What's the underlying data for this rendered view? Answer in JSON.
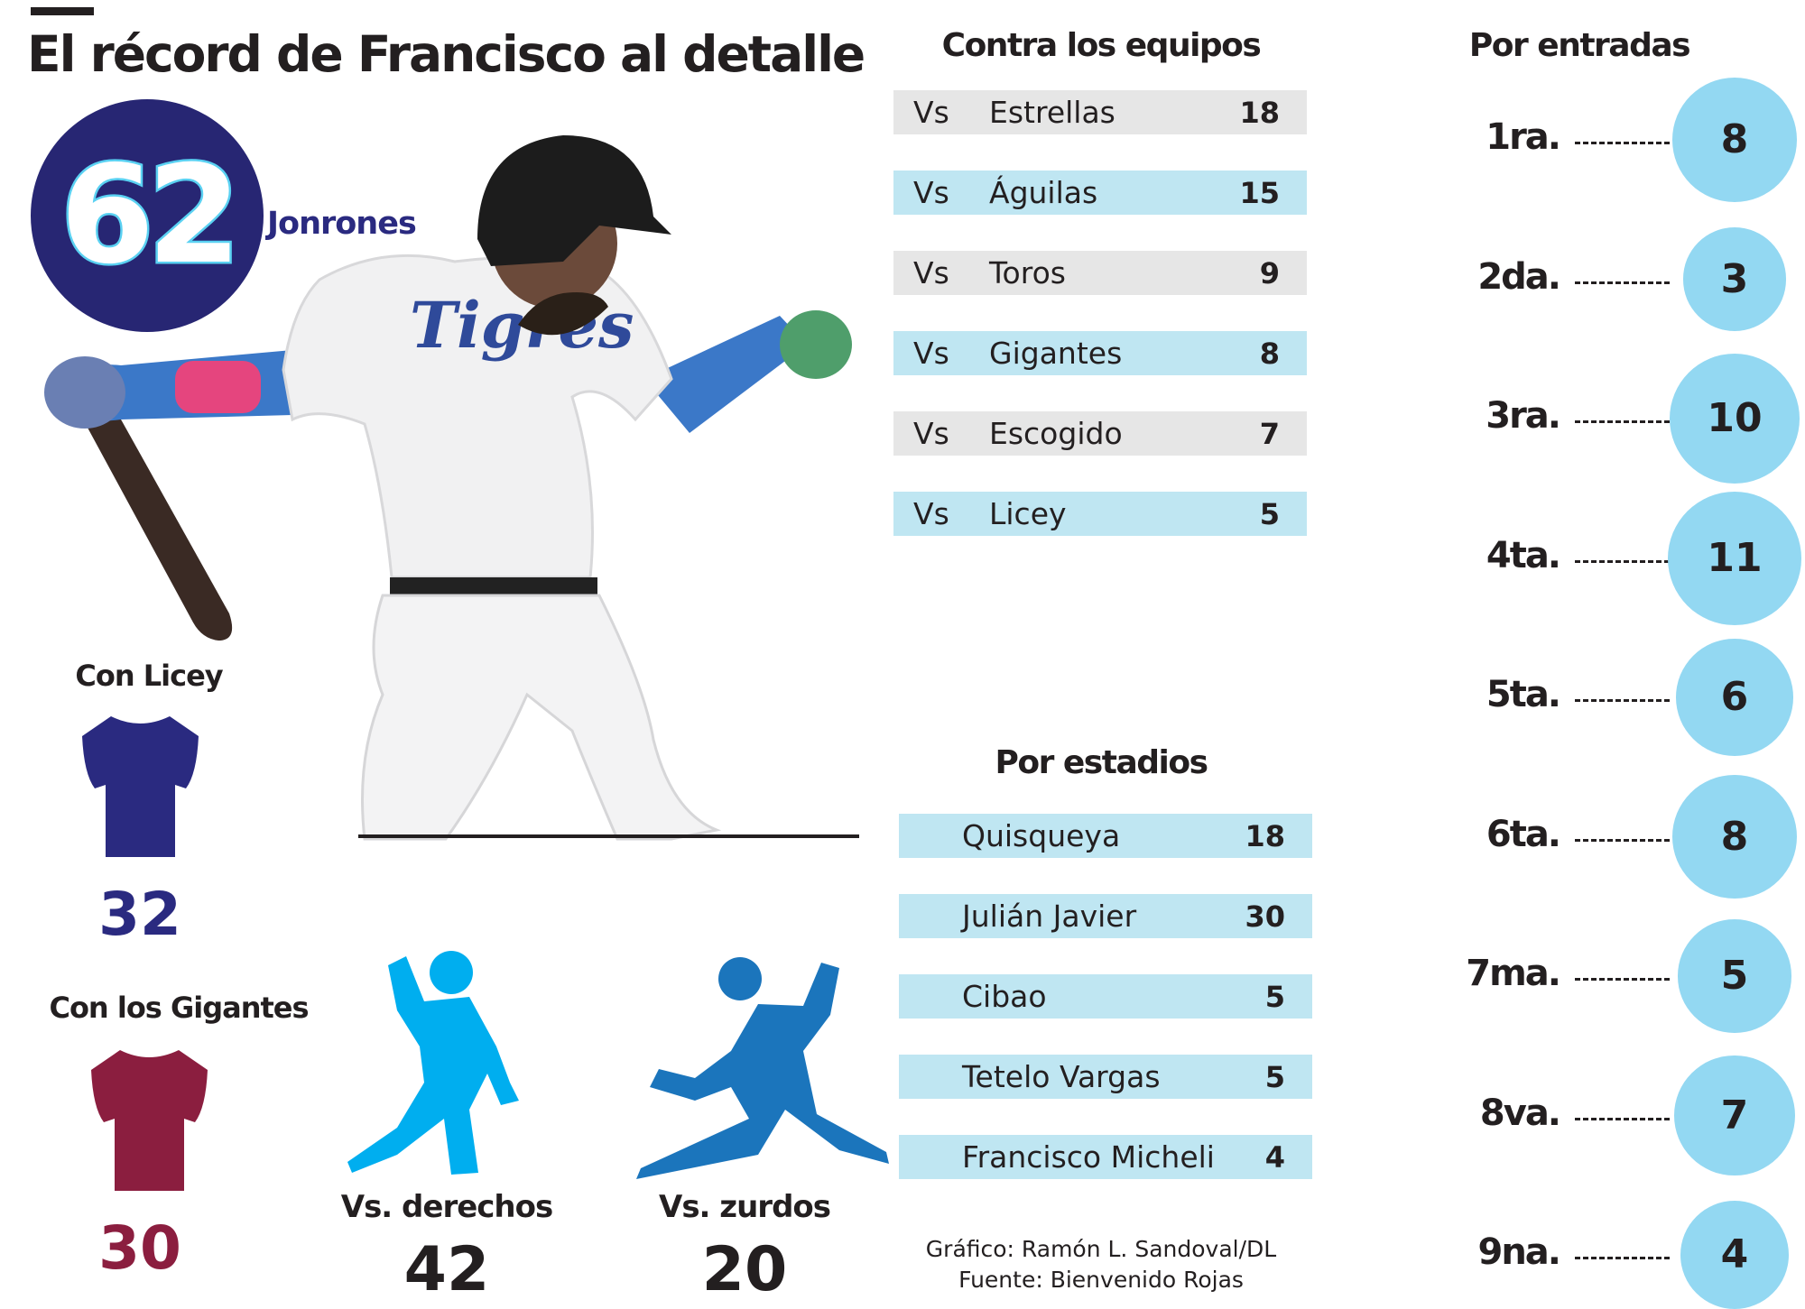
{
  "title": "El récord de Francisco al detalle",
  "home_runs": {
    "total": "62",
    "label": "Jonrones"
  },
  "teams": [
    {
      "label": "Con Licey",
      "value": "32",
      "color": "#2a2a80"
    },
    {
      "label": "Con los Gigantes",
      "value": "30",
      "color": "#8b1e3f"
    }
  ],
  "pitchers": [
    {
      "label": "Vs. derechos",
      "value": "42",
      "color": "#00aeef"
    },
    {
      "label": "Vs. zurdos",
      "value": "20",
      "color": "#1b75bc"
    }
  ],
  "colors": {
    "navy": "#272673",
    "light_blue": "#93d8f2",
    "row_gray": "#e6e6e6",
    "row_blue": "#bfe6f2"
  },
  "chart_data": [
    {
      "type": "table",
      "title": "Contra los equipos",
      "prefix": "Vs",
      "rows": [
        {
          "name": "Estrellas",
          "value": 18
        },
        {
          "name": "Águilas",
          "value": 15
        },
        {
          "name": "Toros",
          "value": 9
        },
        {
          "name": "Gigantes",
          "value": 8
        },
        {
          "name": "Escogido",
          "value": 7
        },
        {
          "name": "Licey",
          "value": 5
        }
      ]
    },
    {
      "type": "table",
      "title": "Por estadios",
      "rows": [
        {
          "name": "Quisqueya",
          "value": 18
        },
        {
          "name": "Julián Javier",
          "value": 30
        },
        {
          "name": "Cibao",
          "value": 5
        },
        {
          "name": "Tetelo Vargas",
          "value": 5
        },
        {
          "name": "Francisco Micheli",
          "value": 4
        }
      ]
    },
    {
      "type": "scatter",
      "title": "Por entradas",
      "categories": [
        "1ra.",
        "2da.",
        "3ra.",
        "4ta.",
        "5ta.",
        "6ta.",
        "7ma.",
        "8va.",
        "9na."
      ],
      "values": [
        8,
        3,
        10,
        11,
        6,
        8,
        5,
        7,
        4
      ]
    }
  ],
  "credits": {
    "graphic": "Gráfico: Ramón L. Sandoval/DL",
    "source": "Fuente: Bienvenido Rojas"
  }
}
